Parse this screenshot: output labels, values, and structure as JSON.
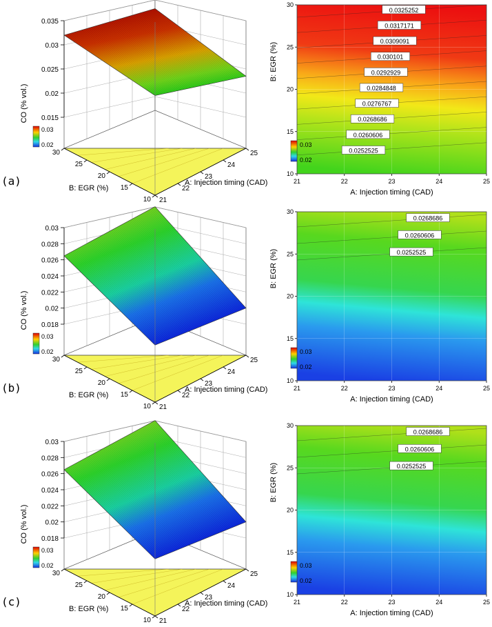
{
  "panels": [
    {
      "label": "(a)",
      "surface": {
        "type": "surface3d",
        "xlabel": "A: Injection timing (CAD)",
        "ylabel": "B: EGR (%)",
        "zlabel": "CO (% vol.)",
        "xticks": [
          "21",
          "22",
          "23",
          "24",
          "25"
        ],
        "yticks": [
          "10",
          "15",
          "20",
          "25",
          "30"
        ],
        "zticks": [
          "0.015",
          "0.02",
          "0.025",
          "0.03",
          "0.035"
        ],
        "zlim": [
          0.015,
          0.035
        ],
        "legend": {
          "high": "0.03",
          "low": "0.02"
        },
        "corner_values": {
          "x21_y30": 0.032,
          "x25_y30": 0.0315,
          "x21_y10": 0.0255,
          "x25_y10": 0.0235
        }
      },
      "contour": {
        "type": "contour",
        "xlabel": "A: Injection timing (CAD)",
        "ylabel": "B: EGR (%)",
        "xticks": [
          "21",
          "22",
          "23",
          "24",
          "25"
        ],
        "yticks": [
          "10",
          "15",
          "20",
          "25",
          "30"
        ],
        "legend": {
          "high": "0.03",
          "low": "0.02"
        },
        "levels": [
          "0.0325252",
          "0.0317171",
          "0.0309091",
          "0.030101",
          "0.0292929",
          "0.0284848",
          "0.0276767",
          "0.0268686",
          "0.0260606",
          "0.0252525"
        ]
      }
    },
    {
      "label": "(b)",
      "surface": {
        "type": "surface3d",
        "xlabel": "A: Injection timing (CAD)",
        "ylabel": "B: EGR (%)",
        "zlabel": "CO (% vol.)",
        "xticks": [
          "21",
          "22",
          "23",
          "24",
          "25"
        ],
        "yticks": [
          "10",
          "15",
          "20",
          "25",
          "30"
        ],
        "zticks": [
          "0.018",
          "0.02",
          "0.022",
          "0.024",
          "0.026",
          "0.028",
          "0.03"
        ],
        "zlim": [
          0.018,
          0.03
        ],
        "legend": {
          "high": "0.03",
          "low": "0.02"
        },
        "corner_values": {
          "x21_y30": 0.0265,
          "x25_y30": 0.029,
          "x21_y10": 0.019,
          "x25_y10": 0.02
        }
      },
      "contour": {
        "type": "contour",
        "xlabel": "A: Injection timing (CAD)",
        "ylabel": "B: EGR (%)",
        "xticks": [
          "21",
          "22",
          "23",
          "24",
          "25"
        ],
        "yticks": [
          "10",
          "15",
          "20",
          "25",
          "30"
        ],
        "legend": {
          "high": "0.03",
          "low": "0.02"
        },
        "levels": [
          "0.0268686",
          "0.0260606",
          "0.0252525"
        ]
      }
    },
    {
      "label": "(c)",
      "surface": {
        "type": "surface3d",
        "xlabel": "A: Injection timing (CAD)",
        "ylabel": "B: EGR (%)",
        "zlabel": "CO (% vol.)",
        "xticks": [
          "21",
          "22",
          "23",
          "24",
          "25"
        ],
        "yticks": [
          "10",
          "15",
          "20",
          "25",
          "30"
        ],
        "zticks": [
          "0.018",
          "0.02",
          "0.022",
          "0.024",
          "0.026",
          "0.028",
          "0.03"
        ],
        "zlim": [
          0.018,
          0.03
        ],
        "legend": {
          "high": "0.03",
          "low": "0.02"
        },
        "corner_values": {
          "x21_y30": 0.0265,
          "x25_y30": 0.029,
          "x21_y10": 0.019,
          "x25_y10": 0.02
        }
      },
      "contour": {
        "type": "contour",
        "xlabel": "A: Injection timing (CAD)",
        "ylabel": "B: EGR (%)",
        "xticks": [
          "21",
          "22",
          "23",
          "24",
          "25"
        ],
        "yticks": [
          "10",
          "15",
          "20",
          "25",
          "30"
        ],
        "legend": {
          "high": "0.03",
          "low": "0.02"
        },
        "levels": [
          "0.0268686",
          "0.0260606",
          "0.0252525"
        ]
      }
    }
  ],
  "chart_data": [
    {
      "type": "surface3d",
      "panel": "(a)",
      "xlabel": "A: Injection timing (CAD)",
      "ylabel": "B: EGR (%)",
      "zlabel": "CO (% vol.)",
      "xlim": [
        21,
        25
      ],
      "ylim": [
        10,
        30
      ],
      "zlim": [
        0.015,
        0.035
      ]
    },
    {
      "type": "contour",
      "panel": "(a)",
      "xlabel": "A: Injection timing (CAD)",
      "ylabel": "B: EGR (%)",
      "xlim": [
        21,
        25
      ],
      "ylim": [
        10,
        30
      ],
      "levels": [
        0.0325252,
        0.0317171,
        0.0309091,
        0.030101,
        0.0292929,
        0.0284848,
        0.0276767,
        0.0268686,
        0.0260606,
        0.0252525
      ]
    },
    {
      "type": "surface3d",
      "panel": "(b)",
      "xlabel": "A: Injection timing (CAD)",
      "ylabel": "B: EGR (%)",
      "zlabel": "CO (% vol.)",
      "xlim": [
        21,
        25
      ],
      "ylim": [
        10,
        30
      ],
      "zlim": [
        0.018,
        0.03
      ]
    },
    {
      "type": "contour",
      "panel": "(b)",
      "xlabel": "A: Injection timing (CAD)",
      "ylabel": "B: EGR (%)",
      "xlim": [
        21,
        25
      ],
      "ylim": [
        10,
        30
      ],
      "levels": [
        0.0268686,
        0.0260606,
        0.0252525
      ]
    },
    {
      "type": "surface3d",
      "panel": "(c)",
      "xlabel": "A: Injection timing (CAD)",
      "ylabel": "B: EGR (%)",
      "zlabel": "CO (% vol.)",
      "xlim": [
        21,
        25
      ],
      "ylim": [
        10,
        30
      ],
      "zlim": [
        0.018,
        0.03
      ]
    },
    {
      "type": "contour",
      "panel": "(c)",
      "xlabel": "A: Injection timing (CAD)",
      "ylabel": "B: EGR (%)",
      "xlim": [
        21,
        25
      ],
      "ylim": [
        10,
        30
      ],
      "levels": [
        0.0268686,
        0.0260606,
        0.0252525
      ]
    }
  ],
  "colors": {
    "high": "#d40000",
    "mid": "#ffd400",
    "green": "#22d422",
    "cyan": "#33eeff",
    "low": "#1133ee",
    "floor": "#f4f45a",
    "legend_high_text": "#cc0000",
    "legend_low_text": "#0022cc"
  }
}
